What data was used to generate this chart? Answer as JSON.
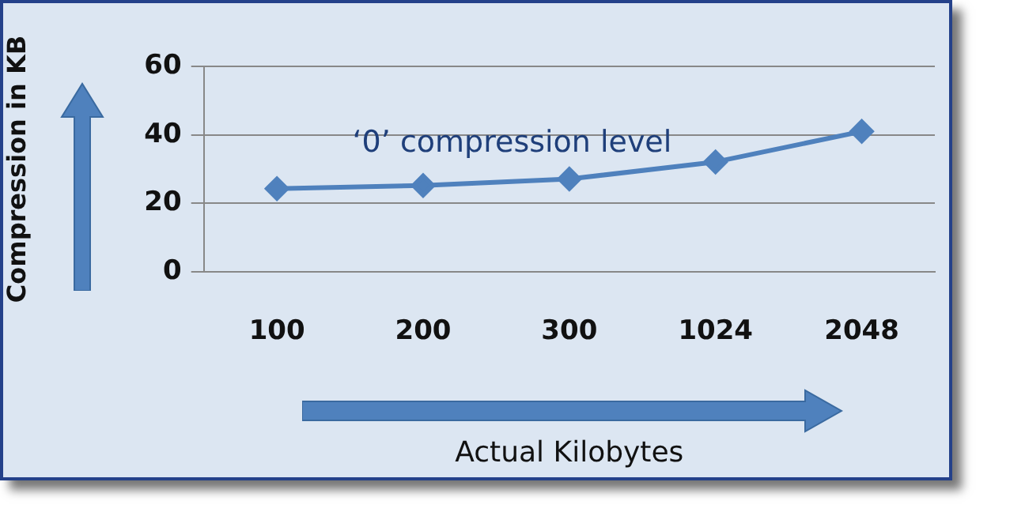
{
  "chart_data": {
    "type": "line",
    "xlabel": "Actual Kilobytes",
    "ylabel": "Compression in KB",
    "categories": [
      "100",
      "200",
      "300",
      "1024",
      "2048"
    ],
    "series": [
      {
        "name": "‘0’ compression level",
        "color": "#4f81bd",
        "values": [
          24.3,
          25.2,
          27.1,
          32.1,
          41.0
        ]
      }
    ],
    "ylim": [
      0,
      60
    ],
    "yticks": [
      0,
      20,
      40,
      60
    ],
    "grid": "y",
    "marker": "diamond",
    "legend": false
  }
}
